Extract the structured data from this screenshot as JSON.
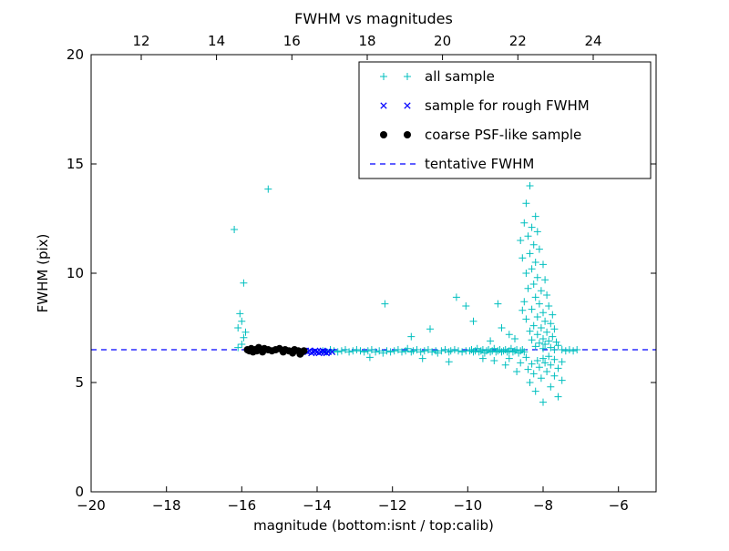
{
  "chart_data": {
    "type": "scatter",
    "title": "FWHM vs magnitudes",
    "xlabel": "magnitude (bottom:isnt / top:calib)",
    "ylabel": "FWHM (pix)",
    "xlim": [
      -20,
      -5
    ],
    "ylim": [
      0,
      20
    ],
    "grid": false,
    "bottom_ticks": {
      "values": [
        -20,
        -18,
        -16,
        -14,
        -12,
        -10,
        -8,
        -6
      ],
      "labels": [
        "−20",
        "−18",
        "−16",
        "−14",
        "−12",
        "−10",
        "−8",
        "−6"
      ]
    },
    "top_ticks": {
      "values": [
        12,
        14,
        16,
        18,
        20,
        22,
        24
      ],
      "labels": [
        "12",
        "14",
        "16",
        "18",
        "20",
        "22",
        "24"
      ],
      "calib_minus_isnt": 30.67
    },
    "y_ticks": {
      "values": [
        0,
        5,
        10,
        15,
        20
      ],
      "labels": [
        "0",
        "5",
        "10",
        "15",
        "20"
      ]
    },
    "reference_line": {
      "label": "tentative FWHM",
      "y": 6.5,
      "color": "#0000ff",
      "style": "dashed"
    },
    "legend": {
      "position": "upper right",
      "entries": [
        {
          "label": "all sample",
          "marker": "plus",
          "color": "#00bfbf"
        },
        {
          "label": "sample for rough FWHM",
          "marker": "x",
          "color": "#0000ff"
        },
        {
          "label": "coarse PSF-like sample",
          "marker": "dot",
          "color": "#000000"
        },
        {
          "label": "tentative FWHM",
          "marker": "dashed-line",
          "color": "#0000ff"
        }
      ]
    },
    "series": [
      {
        "name": "all sample",
        "marker": "plus",
        "color": "#00bfbf",
        "points": [
          [
            -16.2,
            12.0
          ],
          [
            -15.3,
            13.85
          ],
          [
            -15.95,
            9.55
          ],
          [
            -16.05,
            8.15
          ],
          [
            -16.0,
            7.8
          ],
          [
            -16.1,
            7.5
          ],
          [
            -15.9,
            7.3
          ],
          [
            -15.95,
            7.05
          ],
          [
            -16.0,
            6.75
          ],
          [
            -16.1,
            6.6
          ],
          [
            -13.85,
            6.45
          ],
          [
            -13.75,
            6.4
          ],
          [
            -13.65,
            6.5
          ],
          [
            -13.55,
            6.45
          ],
          [
            -13.45,
            6.4
          ],
          [
            -13.35,
            6.45
          ],
          [
            -13.25,
            6.5
          ],
          [
            -13.15,
            6.4
          ],
          [
            -13.05,
            6.45
          ],
          [
            -12.95,
            6.5
          ],
          [
            -12.85,
            6.45
          ],
          [
            -12.75,
            6.4
          ],
          [
            -12.65,
            6.45
          ],
          [
            -12.55,
            6.5
          ],
          [
            -12.45,
            6.4
          ],
          [
            -12.35,
            6.45
          ],
          [
            -12.25,
            6.35
          ],
          [
            -12.15,
            6.45
          ],
          [
            -12.05,
            6.4
          ],
          [
            -11.95,
            6.45
          ],
          [
            -11.85,
            6.5
          ],
          [
            -11.75,
            6.4
          ],
          [
            -11.65,
            6.45
          ],
          [
            -11.6,
            6.55
          ],
          [
            -11.5,
            6.4
          ],
          [
            -11.45,
            6.45
          ],
          [
            -11.35,
            6.5
          ],
          [
            -11.25,
            6.4
          ],
          [
            -11.15,
            6.45
          ],
          [
            -11.05,
            6.5
          ],
          [
            -10.95,
            6.4
          ],
          [
            -10.85,
            6.45
          ],
          [
            -10.8,
            6.35
          ],
          [
            -10.7,
            6.45
          ],
          [
            -10.6,
            6.5
          ],
          [
            -10.5,
            6.4
          ],
          [
            -10.45,
            6.45
          ],
          [
            -10.35,
            6.5
          ],
          [
            -10.25,
            6.45
          ],
          [
            -10.15,
            6.4
          ],
          [
            -10.05,
            6.45
          ],
          [
            -12.2,
            8.6
          ],
          [
            -11.5,
            7.1
          ],
          [
            -11.0,
            7.45
          ],
          [
            -10.3,
            8.9
          ],
          [
            -10.05,
            8.5
          ],
          [
            -9.85,
            7.8
          ],
          [
            -10.5,
            5.95
          ],
          [
            -11.2,
            6.1
          ],
          [
            -12.6,
            6.15
          ],
          [
            -9.95,
            6.45
          ],
          [
            -9.9,
            6.5
          ],
          [
            -9.85,
            6.4
          ],
          [
            -9.8,
            6.45
          ],
          [
            -9.75,
            6.55
          ],
          [
            -9.7,
            6.4
          ],
          [
            -9.65,
            6.45
          ],
          [
            -9.6,
            6.5
          ],
          [
            -9.55,
            6.35
          ],
          [
            -9.5,
            6.45
          ],
          [
            -9.45,
            6.5
          ],
          [
            -9.4,
            6.4
          ],
          [
            -9.35,
            6.45
          ],
          [
            -9.3,
            6.55
          ],
          [
            -9.25,
            6.4
          ],
          [
            -9.2,
            6.45
          ],
          [
            -9.15,
            6.5
          ],
          [
            -9.1,
            6.4
          ],
          [
            -9.05,
            6.45
          ],
          [
            -9.0,
            6.5
          ],
          [
            -8.95,
            6.4
          ],
          [
            -8.9,
            6.45
          ],
          [
            -8.85,
            6.55
          ],
          [
            -8.8,
            6.4
          ],
          [
            -8.75,
            6.45
          ],
          [
            -8.7,
            6.5
          ],
          [
            -8.65,
            6.35
          ],
          [
            -8.6,
            6.45
          ],
          [
            -8.55,
            6.5
          ],
          [
            -8.5,
            6.4
          ],
          [
            -8.35,
            14.0
          ],
          [
            -8.45,
            13.2
          ],
          [
            -8.2,
            12.6
          ],
          [
            -8.5,
            12.3
          ],
          [
            -8.3,
            12.1
          ],
          [
            -8.15,
            11.9
          ],
          [
            -8.4,
            11.7
          ],
          [
            -8.6,
            11.5
          ],
          [
            -8.25,
            11.3
          ],
          [
            -8.1,
            11.1
          ],
          [
            -8.35,
            10.9
          ],
          [
            -8.55,
            10.7
          ],
          [
            -8.2,
            10.5
          ],
          [
            -8.0,
            10.4
          ],
          [
            -8.3,
            10.2
          ],
          [
            -8.45,
            10.0
          ],
          [
            -8.15,
            9.8
          ],
          [
            -7.95,
            9.7
          ],
          [
            -8.25,
            9.5
          ],
          [
            -8.4,
            9.3
          ],
          [
            -8.05,
            9.2
          ],
          [
            -7.9,
            9.0
          ],
          [
            -8.2,
            8.9
          ],
          [
            -8.5,
            8.7
          ],
          [
            -8.1,
            8.6
          ],
          [
            -7.85,
            8.5
          ],
          [
            -8.3,
            8.35
          ],
          [
            -8.0,
            8.2
          ],
          [
            -7.75,
            8.1
          ],
          [
            -8.15,
            8.0
          ],
          [
            -8.45,
            7.9
          ],
          [
            -7.95,
            7.8
          ],
          [
            -7.8,
            7.7
          ],
          [
            -8.25,
            7.6
          ],
          [
            -8.05,
            7.5
          ],
          [
            -7.7,
            7.45
          ],
          [
            -8.35,
            7.35
          ],
          [
            -7.9,
            7.3
          ],
          [
            -8.15,
            7.2
          ],
          [
            -7.75,
            7.1
          ],
          [
            -8.0,
            7.0
          ],
          [
            -8.3,
            6.95
          ],
          [
            -7.85,
            6.9
          ],
          [
            -7.65,
            6.85
          ],
          [
            -8.1,
            6.8
          ],
          [
            -7.95,
            6.75
          ],
          [
            -7.6,
            6.7
          ],
          [
            -8.2,
            6.65
          ],
          [
            -7.8,
            6.6
          ],
          [
            -8.0,
            6.55
          ],
          [
            -7.7,
            6.5
          ],
          [
            -7.5,
            6.5
          ],
          [
            -7.4,
            6.45
          ],
          [
            -7.3,
            6.5
          ],
          [
            -7.2,
            6.45
          ],
          [
            -7.1,
            6.5
          ],
          [
            -8.0,
            4.1
          ],
          [
            -7.6,
            4.35
          ],
          [
            -8.2,
            4.6
          ],
          [
            -7.8,
            4.8
          ],
          [
            -8.35,
            5.0
          ],
          [
            -7.5,
            5.1
          ],
          [
            -8.05,
            5.2
          ],
          [
            -7.7,
            5.3
          ],
          [
            -8.25,
            5.4
          ],
          [
            -7.9,
            5.5
          ],
          [
            -8.4,
            5.6
          ],
          [
            -7.6,
            5.65
          ],
          [
            -8.1,
            5.7
          ],
          [
            -7.8,
            5.8
          ],
          [
            -8.3,
            5.85
          ],
          [
            -7.95,
            5.9
          ],
          [
            -7.5,
            5.95
          ],
          [
            -8.15,
            6.0
          ],
          [
            -7.7,
            6.05
          ],
          [
            -8.0,
            6.1
          ],
          [
            -8.45,
            6.15
          ],
          [
            -7.85,
            6.2
          ],
          [
            -9.0,
            5.8
          ],
          [
            -9.3,
            6.0
          ],
          [
            -9.6,
            6.1
          ],
          [
            -8.7,
            5.5
          ],
          [
            -8.9,
            6.1
          ],
          [
            -8.6,
            5.9
          ],
          [
            -8.9,
            7.2
          ],
          [
            -9.1,
            7.5
          ],
          [
            -8.75,
            7.0
          ],
          [
            -9.4,
            6.9
          ],
          [
            -8.55,
            8.3
          ],
          [
            -9.2,
            8.6
          ]
        ]
      },
      {
        "name": "sample for rough FWHM",
        "marker": "x",
        "color": "#0000ff",
        "points": [
          [
            -14.3,
            6.45
          ],
          [
            -14.25,
            6.4
          ],
          [
            -14.2,
            6.45
          ],
          [
            -14.15,
            6.35
          ],
          [
            -14.1,
            6.4
          ],
          [
            -14.05,
            6.45
          ],
          [
            -14.0,
            6.4
          ],
          [
            -13.95,
            6.35
          ],
          [
            -13.9,
            6.4
          ],
          [
            -13.85,
            6.45
          ],
          [
            -13.8,
            6.4
          ],
          [
            -13.75,
            6.35
          ],
          [
            -13.7,
            6.4
          ],
          [
            -13.6,
            6.4
          ]
        ]
      },
      {
        "name": "coarse PSF-like sample",
        "marker": "dot",
        "color": "#000000",
        "points": [
          [
            -15.85,
            6.5
          ],
          [
            -15.8,
            6.45
          ],
          [
            -15.75,
            6.55
          ],
          [
            -15.7,
            6.4
          ],
          [
            -15.65,
            6.5
          ],
          [
            -15.6,
            6.45
          ],
          [
            -15.55,
            6.6
          ],
          [
            -15.5,
            6.5
          ],
          [
            -15.45,
            6.4
          ],
          [
            -15.4,
            6.55
          ],
          [
            -15.3,
            6.5
          ],
          [
            -15.2,
            6.45
          ],
          [
            -15.1,
            6.5
          ],
          [
            -15.0,
            6.55
          ],
          [
            -14.9,
            6.4
          ],
          [
            -14.85,
            6.5
          ],
          [
            -14.75,
            6.45
          ],
          [
            -14.65,
            6.35
          ],
          [
            -14.6,
            6.5
          ],
          [
            -14.5,
            6.45
          ],
          [
            -14.45,
            6.3
          ],
          [
            -14.4,
            6.4
          ],
          [
            -14.35,
            6.45
          ]
        ]
      }
    ]
  },
  "colors": {
    "background": "#ffffff",
    "frame": "#000000",
    "all_sample": "#00bfbf",
    "rough_fwhm": "#0000ff",
    "psf_sample": "#000000",
    "tentative_line": "#0000ff"
  }
}
